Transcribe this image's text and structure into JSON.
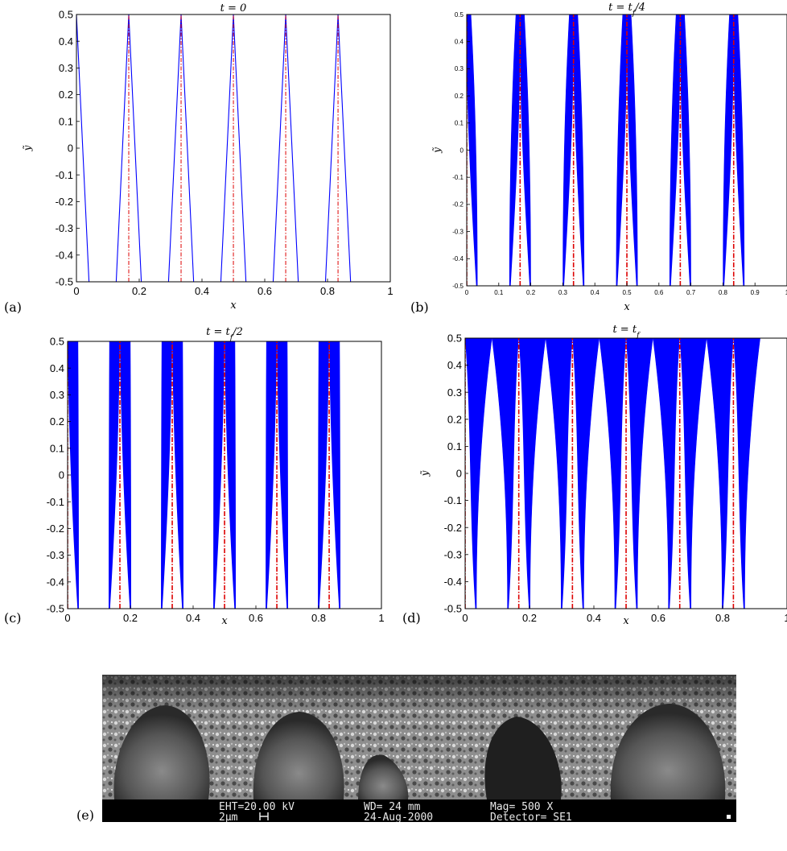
{
  "figure": {
    "panels": [
      {
        "label": "(a)",
        "title_text": "t = 0"
      },
      {
        "label": "(b)",
        "title_text": "t = t_f/4"
      },
      {
        "label": "(c)",
        "title_text": "t = t_f/2"
      },
      {
        "label": "(d)",
        "title_text": "t = t_f"
      },
      {
        "label": "(e)"
      }
    ],
    "sem_info": {
      "eht": "EHT=20.00 kV",
      "wd": "WD=  24 mm",
      "mag": "Mag=  500  X",
      "scale": "2µm",
      "date": "24-Aug-2000",
      "detector": "Detector= SE1"
    }
  },
  "chart_data": [
    {
      "type": "line",
      "title": "t = 0",
      "xlabel": "x",
      "ylabel": "ỹ",
      "xlim": [
        0,
        1
      ],
      "ylim": [
        -0.5,
        0.5
      ],
      "xticks": [
        "0",
        "0.2",
        "0.4",
        "0.6",
        "0.8",
        "1"
      ],
      "yticks": [
        "-0.5",
        "-0.4",
        "-0.3",
        "-0.2",
        "-0.1",
        "0",
        "0.1",
        "0.2",
        "0.3",
        "0.4",
        "0.5"
      ],
      "period": 0.1667,
      "tip_y": 0.5,
      "half_width_top": 0.0,
      "half_width_bottom": 0.04,
      "filled": false,
      "series": [
        {
          "color": "#0000ff",
          "style": "solid"
        },
        {
          "color": "#dd0000",
          "style": "dash-dot"
        }
      ]
    },
    {
      "type": "line",
      "title": "t = t_f/4",
      "xlabel": "x",
      "ylabel": "ỹ",
      "xlim": [
        0,
        1
      ],
      "ylim": [
        -0.5,
        0.5
      ],
      "xticks": [
        "0",
        "0.1",
        "0.2",
        "0.3",
        "0.4",
        "0.5",
        "0.6",
        "0.7",
        "0.8",
        "0.9",
        "1"
      ],
      "yticks": [
        "-0.5",
        "-0.4",
        "-0.3",
        "-0.2",
        "-0.1",
        "0",
        "0.1",
        "0.2",
        "0.3",
        "0.4",
        "0.5"
      ],
      "period": 0.1667,
      "tip_y": 0.5,
      "half_width_top": 0.013,
      "half_width_bottom": 0.033,
      "filled": true,
      "series": [
        {
          "color": "#0000ff",
          "style": "solid"
        },
        {
          "color": "#dd0000",
          "style": "dash-dot"
        }
      ]
    },
    {
      "type": "area",
      "title": "t = t_f/2",
      "xlabel": "x",
      "ylabel": "",
      "xlim": [
        0,
        1
      ],
      "ylim": [
        -0.5,
        0.5
      ],
      "xticks": [
        "0",
        "0.2",
        "0.4",
        "0.6",
        "0.8",
        "1"
      ],
      "yticks": [
        "-0.5",
        "-0.4",
        "-0.3",
        "-0.2",
        "-0.1",
        "0",
        "0.1",
        "0.2",
        "0.3",
        "0.4",
        "0.5"
      ],
      "period": 0.1667,
      "tip_y": 0.5,
      "half_width_top": 0.033,
      "half_width_bottom": 0.035,
      "filled": true,
      "series": [
        {
          "color": "#0000ff",
          "style": "solid"
        },
        {
          "color": "#dd0000",
          "style": "dash-dot"
        }
      ]
    },
    {
      "type": "area",
      "title": "t = t_f",
      "xlabel": "x",
      "ylabel": "ỹ",
      "xlim": [
        0,
        1
      ],
      "ylim": [
        -0.5,
        0.5
      ],
      "xticks": [
        "0",
        "0.2",
        "0.4",
        "0.6",
        "0.8",
        "1"
      ],
      "yticks": [
        "-0.5",
        "-0.4",
        "-0.3",
        "-0.2",
        "-0.1",
        "0",
        "0.1",
        "0.2",
        "0.3",
        "0.4",
        "0.5"
      ],
      "period": 0.1667,
      "tip_y": 0.5,
      "half_width_top": 0.083,
      "half_width_bottom": 0.035,
      "filled": true,
      "series": [
        {
          "color": "#0000ff",
          "style": "solid"
        },
        {
          "color": "#dd0000",
          "style": "dash-dot"
        }
      ]
    }
  ]
}
